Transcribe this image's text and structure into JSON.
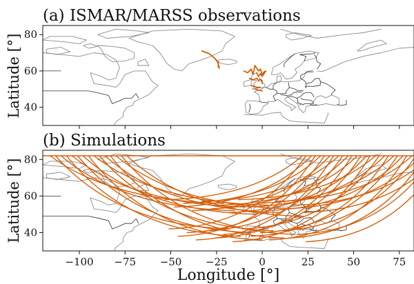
{
  "chart_data": [
    {
      "type": "line",
      "title": "(a) ISMAR/MARSS observations",
      "xlabel": "",
      "ylabel": "Latitude [°]",
      "xlim": [
        -120,
        83
      ],
      "ylim": [
        30,
        85
      ],
      "xticks": [
        -100,
        -75,
        -50,
        -25,
        0,
        25,
        50,
        75
      ],
      "yticks": [
        40,
        60,
        80
      ],
      "series": [
        {
          "x": [
            -33,
            -29,
            -26,
            -24,
            -24
          ],
          "y": [
            71,
            69.5,
            67,
            64.5,
            62
          ]
        },
        {
          "x": [
            -25,
            -24,
            -23.5
          ],
          "y": [
            66,
            64,
            61.5
          ]
        },
        {
          "x": [
            -10,
            -8,
            -6,
            -5,
            -4,
            -2,
            -1,
            0,
            1,
            2,
            0,
            -1,
            -2,
            -3
          ],
          "y": [
            60,
            59,
            61,
            58,
            63,
            60,
            61,
            58,
            59.5,
            60,
            57,
            58.5,
            57,
            59
          ]
        },
        {
          "x": [
            -7,
            -5,
            -3,
            -2,
            -1,
            0,
            0
          ],
          "y": [
            56,
            55,
            56,
            54.5,
            55.5,
            54.5,
            53
          ]
        },
        {
          "x": [
            -6,
            -3,
            -1
          ],
          "y": [
            52,
            51,
            51
          ]
        },
        {
          "x": [
            -4,
            -2,
            0
          ],
          "y": [
            50,
            49.5,
            49
          ]
        }
      ]
    },
    {
      "type": "line",
      "title": "(b) Simulations",
      "xlabel": "Longitude [°]",
      "ylabel": "Latitude [°]",
      "xlim": [
        -120,
        83
      ],
      "ylim": [
        30,
        85
      ],
      "xticks": [
        -100,
        -75,
        -50,
        -25,
        0,
        25,
        50,
        75
      ],
      "yticks": [
        40,
        60,
        80
      ],
      "orbit_segments": {
        "ascending_end_longitudes": [
          -53,
          -51,
          -48,
          -46,
          -43,
          -41,
          -38,
          -36,
          -33,
          -31,
          -28,
          -26,
          -23,
          -21,
          -18,
          -16,
          -13,
          -11,
          -8,
          -6,
          -3,
          -1,
          2,
          4,
          7,
          9,
          12,
          14,
          17,
          19,
          22,
          24
        ],
        "ascending_end_latitudes": [
          58,
          42,
          54,
          38,
          56,
          40,
          52,
          36,
          57,
          41,
          53,
          37,
          55,
          39,
          51,
          35,
          58,
          42,
          54,
          38,
          56,
          40,
          52,
          36,
          57,
          41,
          53,
          37,
          55,
          39,
          51,
          35
        ],
        "descending_end_longitudes": [
          -21,
          -18,
          -15,
          -12,
          -9,
          -6,
          -3,
          0,
          3,
          6,
          9,
          12,
          15,
          18,
          21
        ],
        "descending_end_latitudes": [
          56,
          42,
          52,
          38,
          54,
          40,
          50,
          36,
          55,
          41,
          51,
          37,
          53,
          39,
          49
        ],
        "top_latitude": 82
      }
    }
  ]
}
